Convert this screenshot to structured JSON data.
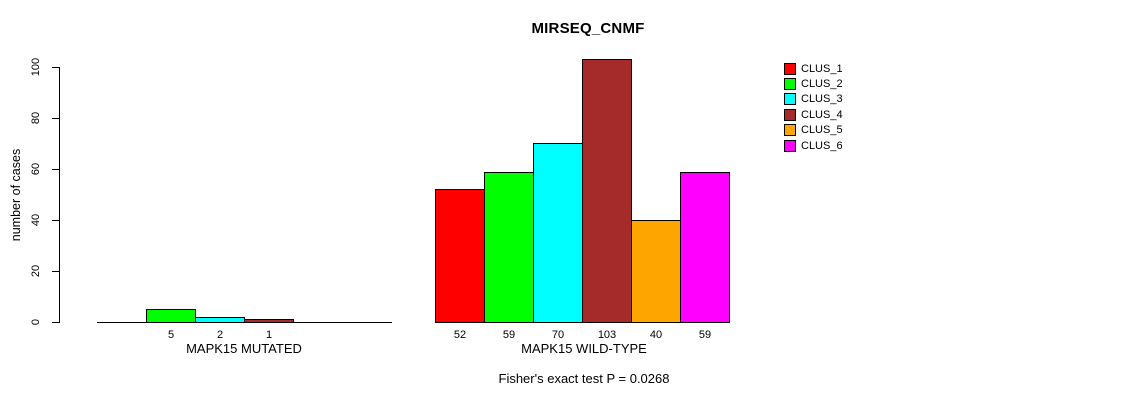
{
  "chart_data": {
    "type": "bar",
    "title": "MIRSEQ_CNMF",
    "ylabel": "number of cases",
    "ylim": [
      0,
      100
    ],
    "yticks": [
      0,
      20,
      40,
      60,
      80,
      100
    ],
    "grid": false,
    "legend_position": "right",
    "clusters": [
      {
        "name": "CLUS_1",
        "color": "#FF0000"
      },
      {
        "name": "CLUS_2",
        "color": "#00FF00"
      },
      {
        "name": "CLUS_3",
        "color": "#00FFFF"
      },
      {
        "name": "CLUS_4",
        "color": "#A52A2A"
      },
      {
        "name": "CLUS_5",
        "color": "#FFA500"
      },
      {
        "name": "CLUS_6",
        "color": "#FF00FF"
      }
    ],
    "groups": [
      {
        "label": "MAPK15 MUTATED",
        "values": [
          0,
          5,
          2,
          1,
          0,
          0
        ],
        "bar_labels": [
          "",
          "5",
          "2",
          "1",
          "",
          ""
        ]
      },
      {
        "label": "MAPK15 WILD-TYPE",
        "values": [
          52,
          59,
          70,
          103,
          40,
          59
        ],
        "bar_labels": [
          "52",
          "59",
          "70",
          "103",
          "40",
          "59"
        ]
      }
    ],
    "footnote": "Fisher's exact test P = 0.0268"
  }
}
